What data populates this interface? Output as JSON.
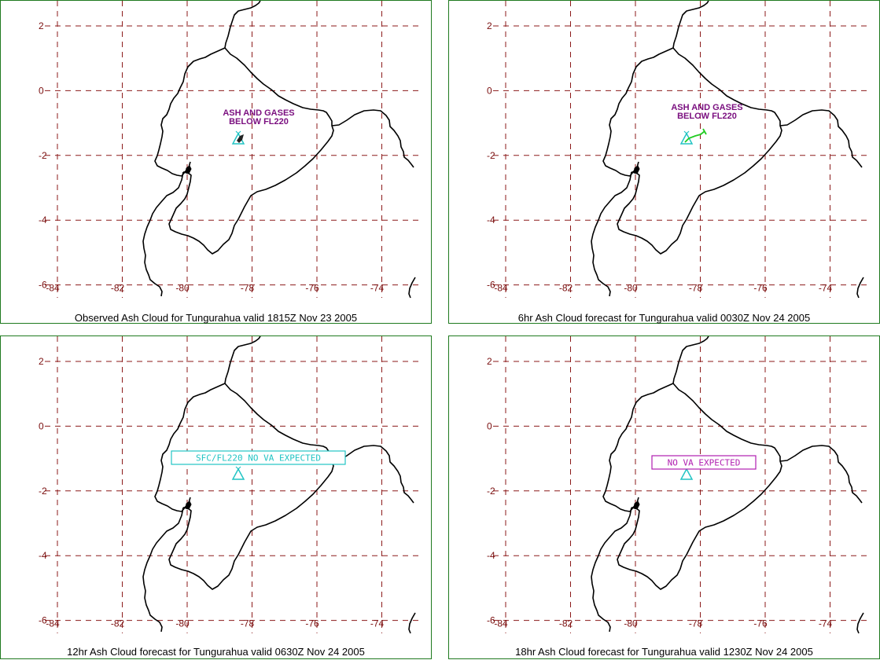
{
  "panels": [
    {
      "caption": "Observed Ash Cloud for Tungurahua valid 1815Z Nov 23 2005",
      "annotation_lines": [
        "ASH AND GASES",
        "BELOW FL220"
      ],
      "annotation_color": "#7b1080",
      "plume_color": "#222222",
      "boxed_label": null
    },
    {
      "caption": "6hr Ash Cloud forecast for Tungurahua valid 0030Z Nov 24 2005",
      "annotation_lines": [
        "ASH AND GASES",
        "BELOW FL220"
      ],
      "annotation_color": "#7b1080",
      "plume_color": "#22cc22",
      "boxed_label": null
    },
    {
      "caption": "12hr Ash Cloud forecast for Tungurahua valid 0630Z Nov 24 2005",
      "annotation_lines": [],
      "boxed_label": {
        "text": "SFC/FL220 NO VA EXPECTED",
        "color": "#22c4c4"
      }
    },
    {
      "caption": "18hr Ash Cloud forecast for Tungurahua valid 1230Z Nov 24 2005",
      "annotation_lines": [],
      "boxed_label": {
        "text": "NO VA EXPECTED",
        "color": "#b01eb0"
      }
    }
  ],
  "map": {
    "lon_ticks": [
      "-84",
      "-82",
      "-80",
      "-78",
      "-76",
      "-74"
    ],
    "lat_ticks": [
      "2",
      "0",
      "-2",
      "-4",
      "-6"
    ],
    "grid_color": "#8b1a1a",
    "coast_color": "#000000",
    "volcano_color": "#22c4c4",
    "volcano_icon": "volcano-triangle-icon"
  }
}
